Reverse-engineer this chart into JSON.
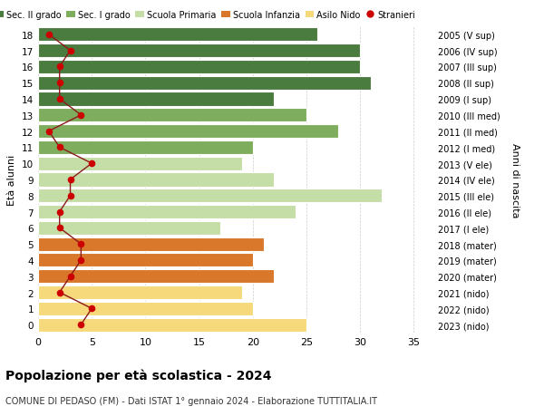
{
  "ages": [
    18,
    17,
    16,
    15,
    14,
    13,
    12,
    11,
    10,
    9,
    8,
    7,
    6,
    5,
    4,
    3,
    2,
    1,
    0
  ],
  "bar_values": [
    26,
    30,
    30,
    31,
    22,
    25,
    28,
    20,
    19,
    22,
    32,
    24,
    17,
    21,
    20,
    22,
    19,
    20,
    25
  ],
  "right_labels": [
    "2005 (V sup)",
    "2006 (IV sup)",
    "2007 (III sup)",
    "2008 (II sup)",
    "2009 (I sup)",
    "2010 (III med)",
    "2011 (II med)",
    "2012 (I med)",
    "2013 (V ele)",
    "2014 (IV ele)",
    "2015 (III ele)",
    "2016 (II ele)",
    "2017 (I ele)",
    "2018 (mater)",
    "2019 (mater)",
    "2020 (mater)",
    "2021 (nido)",
    "2022 (nido)",
    "2023 (nido)"
  ],
  "bar_colors": [
    "#4a7c3f",
    "#4a7c3f",
    "#4a7c3f",
    "#4a7c3f",
    "#4a7c3f",
    "#7fad5e",
    "#7fad5e",
    "#7fad5e",
    "#c5dea8",
    "#c5dea8",
    "#c5dea8",
    "#c5dea8",
    "#c5dea8",
    "#d9772a",
    "#d9772a",
    "#d9772a",
    "#f5d97a",
    "#f5d97a",
    "#f5d97a"
  ],
  "stranieri_values": [
    1,
    3,
    2,
    2,
    2,
    4,
    1,
    2,
    5,
    3,
    3,
    2,
    2,
    4,
    4,
    3,
    2,
    5,
    4
  ],
  "legend_labels": [
    "Sec. II grado",
    "Sec. I grado",
    "Scuola Primaria",
    "Scuola Infanzia",
    "Asilo Nido",
    "Stranieri"
  ],
  "legend_colors": [
    "#4a7c3f",
    "#7fad5e",
    "#c5dea8",
    "#d9772a",
    "#f5d97a",
    "#cc0000"
  ],
  "ylabel": "Età alunni",
  "right_ylabel": "Anni di nascita",
  "title": "Popolazione per età scolastica - 2024",
  "subtitle": "COMUNE DI PEDASO (FM) - Dati ISTAT 1° gennaio 2024 - Elaborazione TUTTITALIA.IT",
  "xlim": [
    0,
    37
  ],
  "background_color": "#ffffff",
  "grid_color": "#cccccc"
}
